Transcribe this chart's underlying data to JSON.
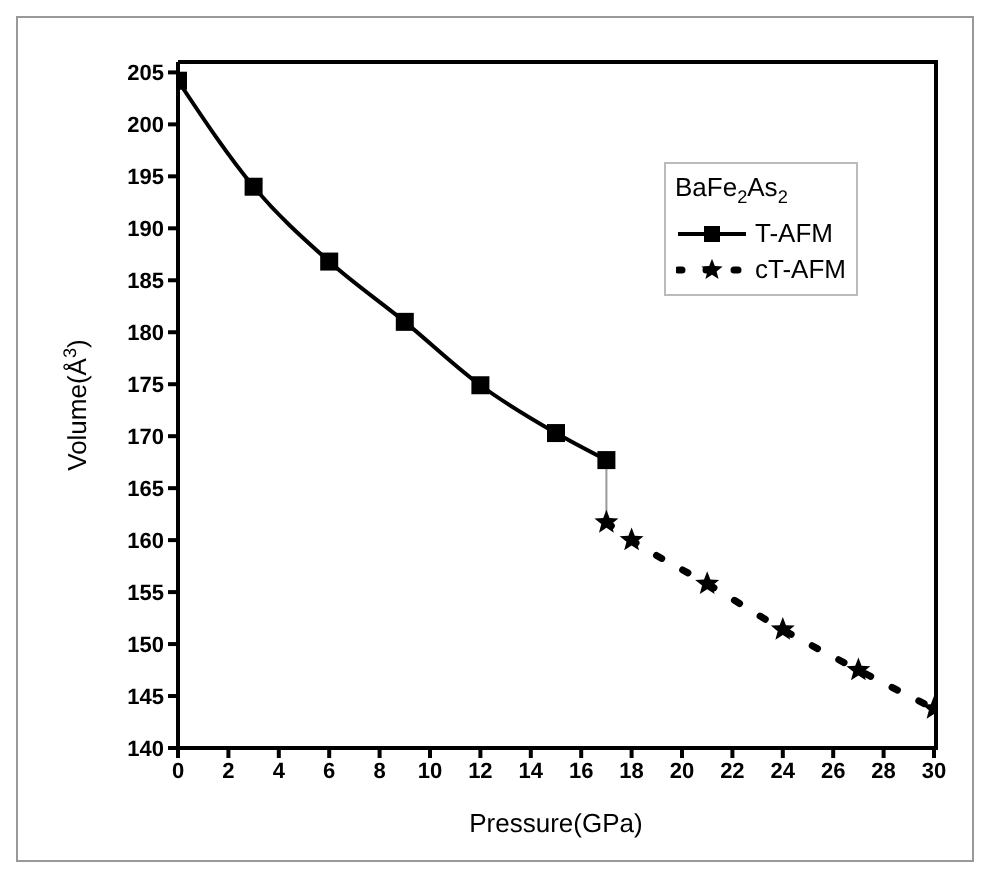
{
  "chart_data": {
    "type": "line",
    "xlabel": "Pressure(GPa)",
    "ylabel": "Volume(Å$^{3}$)",
    "legend_title": "BaFe$_{2}$As$_{2}$",
    "xlim": [
      0,
      30
    ],
    "xticks": [
      0,
      2,
      4,
      6,
      8,
      10,
      12,
      14,
      16,
      18,
      20,
      22,
      24,
      26,
      28,
      30
    ],
    "ylim": [
      140,
      206
    ],
    "yticks": [
      140,
      145,
      150,
      155,
      160,
      165,
      170,
      175,
      180,
      185,
      190,
      195,
      200,
      205
    ],
    "grid": false,
    "legend": "top right",
    "series": [
      {
        "name": "T-AFM",
        "color": "#000000",
        "marker": "square",
        "line_style": "solid",
        "x": [
          0,
          3,
          6,
          9,
          12,
          15,
          17
        ],
        "values": [
          204.2,
          194.0,
          186.8,
          181.0,
          174.9,
          170.3,
          167.7
        ]
      },
      {
        "name": "cT-AFM",
        "color": "#000000",
        "marker": "star",
        "line_style": "dotted",
        "x": [
          17,
          18,
          21,
          24,
          27,
          30
        ],
        "values": [
          161.7,
          160.0,
          155.8,
          151.4,
          147.5,
          143.8
        ]
      },
      {
        "color": "#999999",
        "marker": "none",
        "line_style": "solid",
        "x": [
          17,
          17
        ],
        "values": [
          167.7,
          161.7
        ]
      }
    ]
  }
}
